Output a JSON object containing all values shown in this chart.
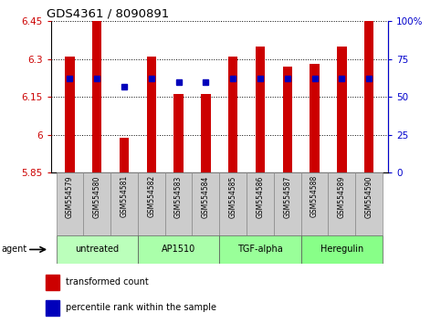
{
  "title": "GDS4361 / 8090891",
  "samples": [
    "GSM554579",
    "GSM554580",
    "GSM554581",
    "GSM554582",
    "GSM554583",
    "GSM554584",
    "GSM554585",
    "GSM554586",
    "GSM554587",
    "GSM554588",
    "GSM554589",
    "GSM554590"
  ],
  "red_values": [
    6.31,
    6.45,
    5.99,
    6.31,
    6.16,
    6.16,
    6.31,
    6.35,
    6.27,
    6.28,
    6.35,
    6.45
  ],
  "blue_values": [
    62,
    62,
    57,
    62,
    60,
    60,
    62,
    62,
    62,
    62,
    62,
    62
  ],
  "y_min": 5.85,
  "y_max": 6.45,
  "y_ticks_left": [
    5.85,
    6.0,
    6.15,
    6.3,
    6.45
  ],
  "y_ticks_right": [
    0,
    25,
    50,
    75,
    100
  ],
  "y_label_left_color": "#cc0000",
  "y_label_right_color": "#0000cc",
  "bar_color": "#cc0000",
  "dot_color": "#0000bb",
  "groups": [
    {
      "label": "untreated",
      "start": 0,
      "end": 3
    },
    {
      "label": "AP1510",
      "start": 3,
      "end": 6
    },
    {
      "label": "TGF-alpha",
      "start": 6,
      "end": 9
    },
    {
      "label": "Heregulin",
      "start": 9,
      "end": 12
    }
  ],
  "group_colors": [
    "#bbffbb",
    "#aaffaa",
    "#99ff99",
    "#88ff88"
  ],
  "agent_label": "agent",
  "legend_red": "transformed count",
  "legend_blue": "percentile rank within the sample",
  "bar_width": 0.35
}
